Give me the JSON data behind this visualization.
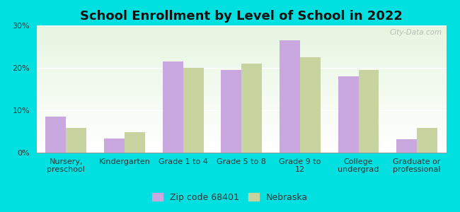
{
  "title": "School Enrollment by Level of School in 2022",
  "categories": [
    "Nursery,\npreschool",
    "Kindergarten",
    "Grade 1 to 4",
    "Grade 5 to 8",
    "Grade 9 to\n12",
    "College\nundergrad",
    "Graduate or\nprofessional"
  ],
  "zip_values": [
    8.5,
    3.3,
    21.5,
    19.5,
    26.5,
    18.0,
    3.2
  ],
  "nebraska_values": [
    5.8,
    4.8,
    20.0,
    21.0,
    22.5,
    19.5,
    5.8
  ],
  "zip_color": "#c9a8e0",
  "nebraska_color": "#c8d4a0",
  "zip_label": "Zip code 68401",
  "nebraska_label": "Nebraska",
  "ylim": [
    0,
    30
  ],
  "yticks": [
    0,
    10,
    20,
    30
  ],
  "ytick_labels": [
    "0%",
    "10%",
    "20%",
    "30%"
  ],
  "background_color": "#00e0e0",
  "plot_bg_top": "#e6f5e0",
  "plot_bg_bottom": "#ffffff",
  "title_fontsize": 13,
  "tick_fontsize": 8,
  "legend_fontsize": 9,
  "bar_width": 0.35,
  "watermark": "City-Data.com"
}
